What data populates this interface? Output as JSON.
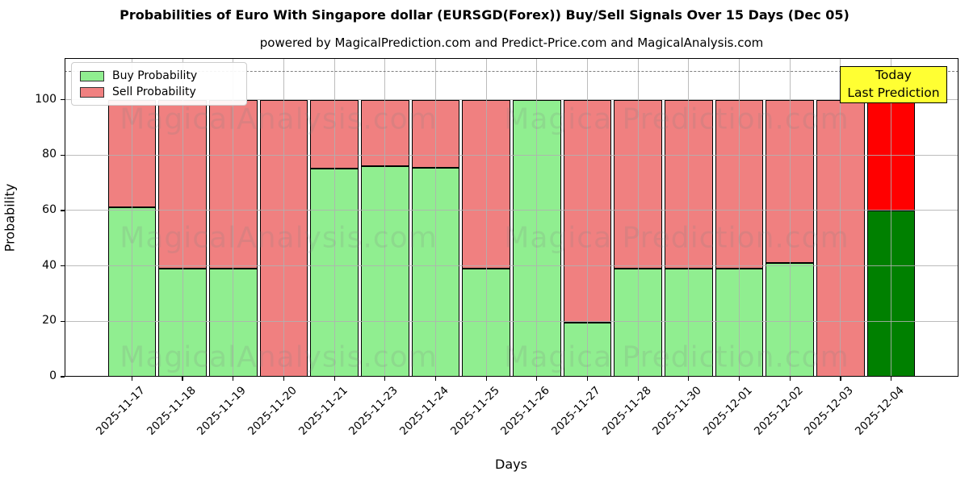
{
  "title": "Probabilities of Euro With Singapore dollar (EURSGD(Forex)) Buy/Sell Signals Over 15 Days (Dec 05)",
  "subtitle": "powered by MagicalPrediction.com and Predict-Price.com and MagicalAnalysis.com",
  "legend": {
    "items": [
      {
        "label": "Buy Probability",
        "color": "#90EE90"
      },
      {
        "label": "Sell Probability",
        "color": "#F08080"
      }
    ]
  },
  "annotation_box": {
    "line1": "Today",
    "line2": "Last Prediction",
    "bg_color": "#ffff33"
  },
  "watermarks": {
    "left_text": "MagicalAnalysis.com",
    "right_text": "Magica Prediction.com"
  },
  "chart_data": {
    "type": "bar",
    "stacked": true,
    "title": "Probabilities of Euro With Singapore dollar (EURSGD(Forex)) Buy/Sell Signals Over 15 Days (Dec 05)",
    "xlabel": "Days",
    "ylabel": "Probability",
    "categories": [
      "2025-11-17",
      "2025-11-18",
      "2025-11-19",
      "2025-11-20",
      "2025-11-21",
      "2025-11-23",
      "2025-11-24",
      "2025-11-25",
      "2025-11-26",
      "2025-11-27",
      "2025-11-28",
      "2025-11-30",
      "2025-12-01",
      "2025-12-02",
      "2025-12-03",
      "2025-12-04"
    ],
    "series": [
      {
        "name": "Buy Probability",
        "color": "#90EE90",
        "last_bar_color": "#008000",
        "values": [
          61,
          39,
          39,
          0,
          75,
          76,
          75.5,
          39,
          100,
          19.5,
          39,
          39,
          39,
          41,
          0,
          60
        ]
      },
      {
        "name": "Sell Probability",
        "color": "#F08080",
        "last_bar_color": "#FF0000",
        "values": [
          39,
          61,
          61,
          100,
          25,
          24,
          24.5,
          61,
          0,
          80.5,
          61,
          61,
          61,
          59,
          100,
          40
        ]
      }
    ],
    "yticks": [
      0,
      20,
      40,
      60,
      80,
      100
    ],
    "ylim": [
      0,
      115
    ],
    "dashed_line_y": 110,
    "grid": true,
    "legend_position": "upper left"
  }
}
